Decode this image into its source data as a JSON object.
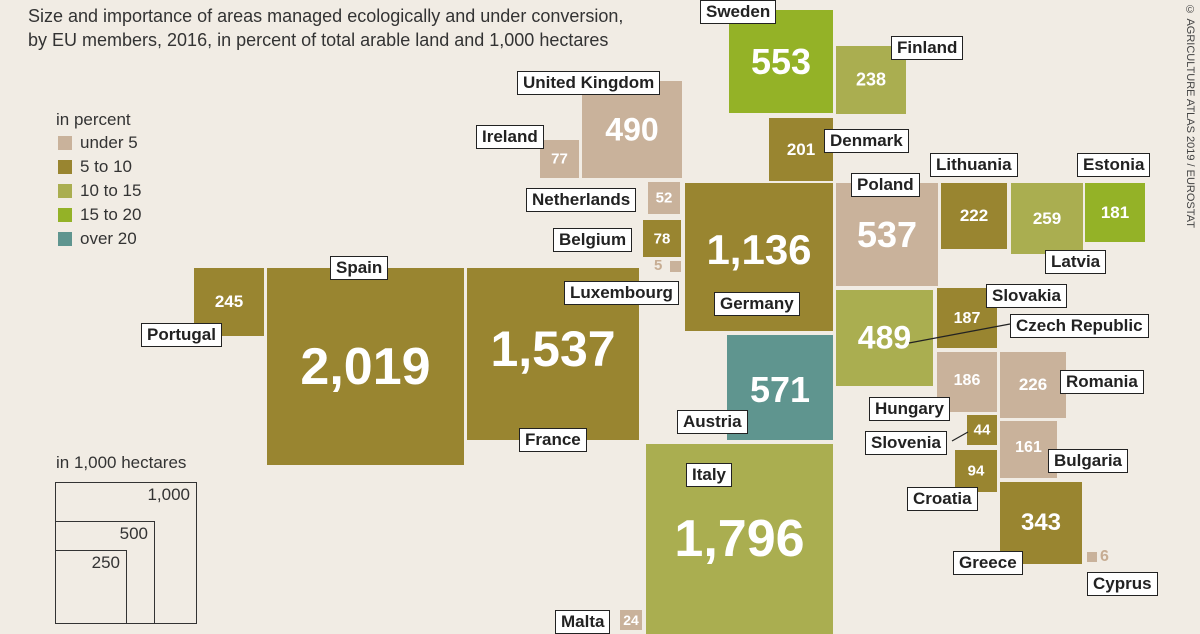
{
  "subtitle_line1": "Size and importance of areas managed ecologically and under conversion,",
  "subtitle_line2": "by EU members, 2016, in percent of total arable land and 1,000 hectares",
  "credit": "© AGRICULTURE ATLAS 2019 / EUROSTAT",
  "legend": {
    "title": "in percent",
    "items": [
      {
        "label": "under 5",
        "color": "#c9b29b"
      },
      {
        "label": "5 to 10",
        "color": "#998530"
      },
      {
        "label": "10 to 15",
        "color": "#aaae50"
      },
      {
        "label": "15 to 20",
        "color": "#94b227"
      },
      {
        "label": "over 20",
        "color": "#5f958f"
      }
    ]
  },
  "size_legend": {
    "title": "in 1,000 hectares",
    "v1000": "1,000",
    "v500": "500",
    "v250": "250"
  },
  "countries": {
    "sweden": {
      "name": "Sweden",
      "value": "553"
    },
    "finland": {
      "name": "Finland",
      "value": "238"
    },
    "uk": {
      "name": "United Kingdom",
      "value": "490"
    },
    "ireland": {
      "name": "Ireland",
      "value": "77"
    },
    "denmark": {
      "name": "Denmark",
      "value": "201"
    },
    "netherlands": {
      "name": "Netherlands",
      "value": "52"
    },
    "belgium": {
      "name": "Belgium",
      "value": "78"
    },
    "luxembourg": {
      "name": "Luxembourg",
      "value": "5"
    },
    "germany": {
      "name": "Germany",
      "value": "1,136"
    },
    "poland": {
      "name": "Poland",
      "value": "537"
    },
    "lithuania": {
      "name": "Lithuania",
      "value": "222"
    },
    "estonia": {
      "name": "Estonia",
      "value": "181"
    },
    "latvia": {
      "name": "Latvia",
      "value": "259"
    },
    "spain": {
      "name": "Spain",
      "value": "2,019"
    },
    "portugal": {
      "name": "Portugal",
      "value": "245"
    },
    "france": {
      "name": "France",
      "value": "1,537"
    },
    "austria": {
      "name": "Austria",
      "value": "571"
    },
    "czech": {
      "name": "Czech Republic",
      "value": "489"
    },
    "slovakia": {
      "name": "Slovakia",
      "value": "187"
    },
    "hungary": {
      "name": "Hungary",
      "value": "186"
    },
    "romania": {
      "name": "Romania",
      "value": "226"
    },
    "slovenia": {
      "name": "Slovenia",
      "value": "44"
    },
    "croatia": {
      "name": "Croatia",
      "value": "94"
    },
    "bulgaria": {
      "name": "Bulgaria",
      "value": "161"
    },
    "italy": {
      "name": "Italy",
      "value": "1,796"
    },
    "greece": {
      "name": "Greece",
      "value": "343"
    },
    "cyprus": {
      "name": "Cyprus",
      "value": "6"
    },
    "malta": {
      "name": "Malta",
      "value": "24"
    }
  }
}
